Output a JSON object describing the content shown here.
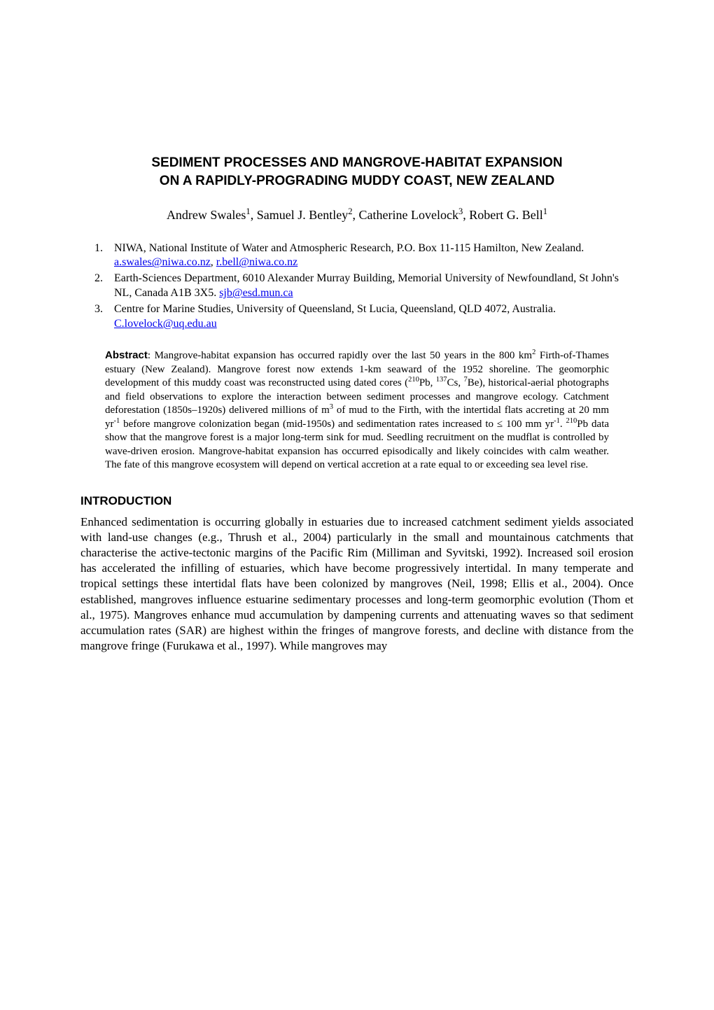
{
  "title_line1": "SEDIMENT PROCESSES AND MANGROVE-HABITAT EXPANSION",
  "title_line2": "ON A RAPIDLY-PROGRADING MUDDY COAST, NEW ZEALAND",
  "authors": {
    "a1_name": "Andrew Swales",
    "a1_sup": "1",
    "a2_name": "Samuel J. Bentley",
    "a2_sup": "2",
    "a3_name": "Catherine Lovelock",
    "a3_sup": "3",
    "a4_name": "Robert G. Bell",
    "a4_sup": "1"
  },
  "affiliations": {
    "n1": "1.",
    "n2": "2.",
    "n3": "3.",
    "aff1_text_a": "NIWA, National Institute of Water and Atmospheric Research, P.O. Box 11-115 Hamilton, New Zealand.  ",
    "aff1_link1": "a.swales@niwa.co.nz",
    "aff1_sep": ", ",
    "aff1_link2": "r.bell@niwa.co.nz",
    "aff2_text_a": "Earth-Sciences Department, 6010 Alexander Murray Building, Memorial University of Newfoundland, St John's NL, Canada A1B 3X5. ",
    "aff2_link1": "sjb@esd.mun.ca",
    "aff3_text_a": "Centre for Marine Studies, University of Queensland, St Lucia, Queensland, QLD 4072, Australia. ",
    "aff3_link1": "C.lovelock@uq.edu.au"
  },
  "abstract": {
    "label": "Abstract",
    "colon": ":  ",
    "p1": "Mangrove-habitat expansion has occurred rapidly over the last 50 years in the 800 km",
    "sup1": "2",
    "p2": " Firth-of-Thames estuary (New Zealand).  Mangrove forest now extends 1-km seaward of the 1952 shoreline.  The geomorphic development of this muddy coast was reconstructed using dated cores (",
    "sup2": "210",
    "p3": "Pb, ",
    "sup3": "137",
    "p4": "Cs, ",
    "sup4": "7",
    "p5": "Be), historical-aerial photographs and field observations to explore the interaction between sediment processes and mangrove ecology.  Catchment deforestation (1850s–1920s) delivered millions of m",
    "sup5": "3",
    "p6": " of mud to the Firth, with the intertidal flats accreting at 20 mm yr",
    "sup6": "-1",
    "p7": " before mangrove colonization began (mid-1950s) and sedimentation rates increased to ≤ 100 mm yr",
    "sup7": "-1",
    "p8": ".  ",
    "sup8": "210",
    "p9": "Pb data show that the mangrove forest is a major long-term sink for mud.  Seedling recruitment on the mudflat is controlled by wave-driven erosion.  Mangrove-habitat expansion has occurred episodically and likely coincides with calm weather.  The fate of this mangrove ecosystem will depend on vertical accretion at a rate equal to or exceeding sea level rise."
  },
  "section_heading": "INTRODUCTION",
  "body": "Enhanced sedimentation is occurring globally in estuaries due to increased catchment sediment yields associated with land-use changes (e.g., Thrush et al., 2004) particularly in the small and mountainous catchments that characterise the active-tectonic margins of the Pacific Rim (Milliman and Syvitski, 1992).  Increased soil erosion has accelerated the infilling of estuaries, which have become progressively intertidal.  In many temperate and tropical settings these intertidal flats have been colonized by mangroves (Neil, 1998; Ellis et al., 2004).  Once established, mangroves influence estuarine sedimentary processes and long-term geomorphic evolution (Thom et al., 1975).  Mangroves enhance mud accumulation by dampening currents and attenuating waves so that sediment accumulation rates (SAR) are highest within the fringes of mangrove forests, and decline with distance from the mangrove fringe (Furukawa et al., 1997).  While mangroves may"
}
